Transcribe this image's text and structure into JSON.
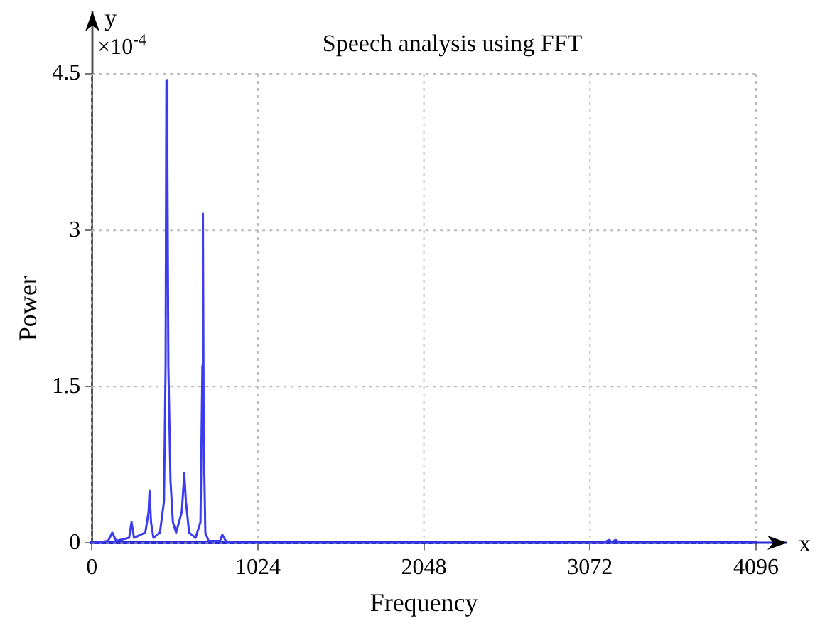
{
  "chart_data": {
    "type": "line",
    "title": "Speech analysis using FFT",
    "xlabel": "Frequency",
    "ylabel": "Power",
    "annotations": [
      "×10$^{-4}$",
      "x",
      "y"
    ],
    "xlim": [
      0,
      4096
    ],
    "xticks": [
      0,
      1024,
      2048,
      3072,
      4096
    ],
    "ylim": [
      0,
      4.5
    ],
    "yticks": [
      0,
      1.5,
      3,
      4.5
    ],
    "grid": true,
    "legend": false,
    "marker": "none",
    "line_style": "solid",
    "series": [
      {
        "color": "#3b3bf0",
        "x": [
          0,
          100,
          126,
          150,
          230,
          245,
          260,
          330,
          350,
          356,
          365,
          380,
          420,
          445,
          455,
          460,
          466,
          472,
          485,
          500,
          520,
          555,
          570,
          580,
          600,
          640,
          670,
          682,
          685,
          690,
          700,
          720,
          790,
          805,
          830,
          900,
          3150,
          3190,
          3206,
          3230,
          3260,
          4096
        ],
        "values": [
          0,
          0.02,
          0.1,
          0.02,
          0.05,
          0.2,
          0.05,
          0.1,
          0.3,
          0.5,
          0.2,
          0.05,
          0.1,
          0.4,
          1.7,
          4.44,
          3.7,
          1.7,
          0.6,
          0.2,
          0.1,
          0.3,
          0.67,
          0.4,
          0.1,
          0.05,
          0.2,
          1.7,
          3.16,
          1,
          0.1,
          0.02,
          0.02,
          0.08,
          0.01,
          0,
          0,
          0.03,
          0.01,
          0.03,
          0,
          0
        ]
      }
    ]
  }
}
